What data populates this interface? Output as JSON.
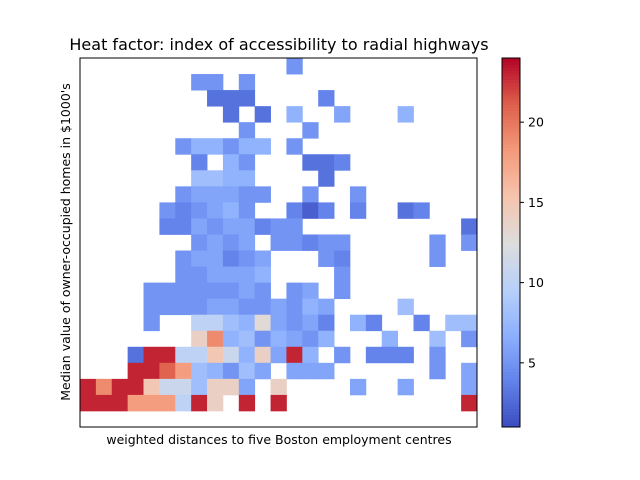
{
  "chart_data": {
    "type": "heatmap",
    "title": "Heat factor: index of accessibility to radial highways",
    "xlabel": "weighted distances to five Boston employment centres",
    "ylabel": "Median value of owner-occupied homes in $1000's",
    "x_ticks_visible": false,
    "y_ticks_visible": false,
    "n_cols": 25,
    "n_rows": 23,
    "colormap": "coolwarm",
    "vmin": 1,
    "vmax": 24,
    "colorbar_ticks": [
      5,
      10,
      15,
      20
    ],
    "colorbar_tick_labels": [
      "5",
      "10",
      "15",
      "20"
    ],
    "cells": [
      {
        "col": 13,
        "row": 0,
        "value": 5
      },
      {
        "col": 7,
        "row": 1,
        "value": 5
      },
      {
        "col": 8,
        "row": 1,
        "value": 5
      },
      {
        "col": 10,
        "row": 1,
        "value": 5
      },
      {
        "col": 8,
        "row": 2,
        "value": 3
      },
      {
        "col": 9,
        "row": 2,
        "value": 3
      },
      {
        "col": 10,
        "row": 2,
        "value": 3
      },
      {
        "col": 15,
        "row": 2,
        "value": 4
      },
      {
        "col": 9,
        "row": 3,
        "value": 3
      },
      {
        "col": 11,
        "row": 3,
        "value": 3
      },
      {
        "col": 13,
        "row": 3,
        "value": 7
      },
      {
        "col": 16,
        "row": 3,
        "value": 6
      },
      {
        "col": 20,
        "row": 3,
        "value": 7
      },
      {
        "col": 10,
        "row": 4,
        "value": 5
      },
      {
        "col": 14,
        "row": 4,
        "value": 5
      },
      {
        "col": 6,
        "row": 5,
        "value": 5
      },
      {
        "col": 7,
        "row": 5,
        "value": 7
      },
      {
        "col": 8,
        "row": 5,
        "value": 7
      },
      {
        "col": 9,
        "row": 5,
        "value": 5
      },
      {
        "col": 10,
        "row": 5,
        "value": 7
      },
      {
        "col": 11,
        "row": 5,
        "value": 7
      },
      {
        "col": 13,
        "row": 5,
        "value": 5
      },
      {
        "col": 7,
        "row": 6,
        "value": 4
      },
      {
        "col": 9,
        "row": 6,
        "value": 7
      },
      {
        "col": 10,
        "row": 6,
        "value": 5
      },
      {
        "col": 14,
        "row": 6,
        "value": 3
      },
      {
        "col": 15,
        "row": 6,
        "value": 3
      },
      {
        "col": 16,
        "row": 6,
        "value": 4
      },
      {
        "col": 7,
        "row": 7,
        "value": 8
      },
      {
        "col": 8,
        "row": 7,
        "value": 8
      },
      {
        "col": 9,
        "row": 7,
        "value": 7
      },
      {
        "col": 10,
        "row": 7,
        "value": 7
      },
      {
        "col": 15,
        "row": 7,
        "value": 3
      },
      {
        "col": 6,
        "row": 8,
        "value": 5
      },
      {
        "col": 7,
        "row": 8,
        "value": 6
      },
      {
        "col": 8,
        "row": 8,
        "value": 6
      },
      {
        "col": 9,
        "row": 8,
        "value": 6
      },
      {
        "col": 10,
        "row": 8,
        "value": 5
      },
      {
        "col": 11,
        "row": 8,
        "value": 5
      },
      {
        "col": 14,
        "row": 8,
        "value": 5
      },
      {
        "col": 17,
        "row": 8,
        "value": 5
      },
      {
        "col": 5,
        "row": 9,
        "value": 5
      },
      {
        "col": 6,
        "row": 9,
        "value": 4
      },
      {
        "col": 7,
        "row": 9,
        "value": 5
      },
      {
        "col": 8,
        "row": 9,
        "value": 6
      },
      {
        "col": 9,
        "row": 9,
        "value": 7
      },
      {
        "col": 10,
        "row": 9,
        "value": 5
      },
      {
        "col": 13,
        "row": 9,
        "value": 4
      },
      {
        "col": 14,
        "row": 9,
        "value": 2
      },
      {
        "col": 15,
        "row": 9,
        "value": 4
      },
      {
        "col": 17,
        "row": 9,
        "value": 4
      },
      {
        "col": 20,
        "row": 9,
        "value": 3
      },
      {
        "col": 21,
        "row": 9,
        "value": 4
      },
      {
        "col": 5,
        "row": 10,
        "value": 4
      },
      {
        "col": 6,
        "row": 10,
        "value": 4
      },
      {
        "col": 7,
        "row": 10,
        "value": 6
      },
      {
        "col": 8,
        "row": 10,
        "value": 5
      },
      {
        "col": 9,
        "row": 10,
        "value": 6
      },
      {
        "col": 10,
        "row": 10,
        "value": 6
      },
      {
        "col": 11,
        "row": 10,
        "value": 4
      },
      {
        "col": 12,
        "row": 10,
        "value": 5
      },
      {
        "col": 13,
        "row": 10,
        "value": 5
      },
      {
        "col": 24,
        "row": 10,
        "value": 3
      },
      {
        "col": 7,
        "row": 11,
        "value": 5
      },
      {
        "col": 8,
        "row": 11,
        "value": 6
      },
      {
        "col": 9,
        "row": 11,
        "value": 5
      },
      {
        "col": 10,
        "row": 11,
        "value": 6
      },
      {
        "col": 12,
        "row": 11,
        "value": 5
      },
      {
        "col": 13,
        "row": 11,
        "value": 5
      },
      {
        "col": 14,
        "row": 11,
        "value": 4
      },
      {
        "col": 15,
        "row": 11,
        "value": 5
      },
      {
        "col": 16,
        "row": 11,
        "value": 5
      },
      {
        "col": 22,
        "row": 11,
        "value": 5
      },
      {
        "col": 24,
        "row": 11,
        "value": 5
      },
      {
        "col": 6,
        "row": 12,
        "value": 5
      },
      {
        "col": 7,
        "row": 12,
        "value": 6
      },
      {
        "col": 8,
        "row": 12,
        "value": 6
      },
      {
        "col": 9,
        "row": 12,
        "value": 4
      },
      {
        "col": 10,
        "row": 12,
        "value": 5
      },
      {
        "col": 11,
        "row": 12,
        "value": 6
      },
      {
        "col": 15,
        "row": 12,
        "value": 5
      },
      {
        "col": 16,
        "row": 12,
        "value": 4
      },
      {
        "col": 22,
        "row": 12,
        "value": 5
      },
      {
        "col": 6,
        "row": 13,
        "value": 5
      },
      {
        "col": 7,
        "row": 13,
        "value": 5
      },
      {
        "col": 8,
        "row": 13,
        "value": 6
      },
      {
        "col": 9,
        "row": 13,
        "value": 6
      },
      {
        "col": 10,
        "row": 13,
        "value": 6
      },
      {
        "col": 11,
        "row": 13,
        "value": 7
      },
      {
        "col": 16,
        "row": 13,
        "value": 5
      },
      {
        "col": 4,
        "row": 14,
        "value": 5
      },
      {
        "col": 5,
        "row": 14,
        "value": 5
      },
      {
        "col": 6,
        "row": 14,
        "value": 5
      },
      {
        "col": 7,
        "row": 14,
        "value": 5
      },
      {
        "col": 8,
        "row": 14,
        "value": 5
      },
      {
        "col": 9,
        "row": 14,
        "value": 5
      },
      {
        "col": 10,
        "row": 14,
        "value": 6
      },
      {
        "col": 11,
        "row": 14,
        "value": 5
      },
      {
        "col": 13,
        "row": 14,
        "value": 5
      },
      {
        "col": 14,
        "row": 14,
        "value": 6
      },
      {
        "col": 16,
        "row": 14,
        "value": 5
      },
      {
        "col": 4,
        "row": 15,
        "value": 5
      },
      {
        "col": 5,
        "row": 15,
        "value": 5
      },
      {
        "col": 6,
        "row": 15,
        "value": 5
      },
      {
        "col": 7,
        "row": 15,
        "value": 5
      },
      {
        "col": 8,
        "row": 15,
        "value": 6
      },
      {
        "col": 9,
        "row": 15,
        "value": 6
      },
      {
        "col": 10,
        "row": 15,
        "value": 5
      },
      {
        "col": 11,
        "row": 15,
        "value": 5
      },
      {
        "col": 12,
        "row": 15,
        "value": 6
      },
      {
        "col": 13,
        "row": 15,
        "value": 5
      },
      {
        "col": 14,
        "row": 15,
        "value": 7
      },
      {
        "col": 15,
        "row": 15,
        "value": 6
      },
      {
        "col": 20,
        "row": 15,
        "value": 8
      },
      {
        "col": 4,
        "row": 16,
        "value": 5
      },
      {
        "col": 7,
        "row": 16,
        "value": 10
      },
      {
        "col": 8,
        "row": 16,
        "value": 10
      },
      {
        "col": 9,
        "row": 16,
        "value": 8
      },
      {
        "col": 10,
        "row": 16,
        "value": 7
      },
      {
        "col": 11,
        "row": 16,
        "value": 13
      },
      {
        "col": 12,
        "row": 16,
        "value": 6
      },
      {
        "col": 13,
        "row": 16,
        "value": 5
      },
      {
        "col": 14,
        "row": 16,
        "value": 6
      },
      {
        "col": 15,
        "row": 16,
        "value": 4
      },
      {
        "col": 17,
        "row": 16,
        "value": 7
      },
      {
        "col": 18,
        "row": 16,
        "value": 4
      },
      {
        "col": 21,
        "row": 16,
        "value": 4
      },
      {
        "col": 23,
        "row": 16,
        "value": 8
      },
      {
        "col": 24,
        "row": 16,
        "value": 8
      },
      {
        "col": 7,
        "row": 17,
        "value": 14
      },
      {
        "col": 8,
        "row": 17,
        "value": 19
      },
      {
        "col": 9,
        "row": 17,
        "value": 7
      },
      {
        "col": 10,
        "row": 17,
        "value": 8
      },
      {
        "col": 11,
        "row": 17,
        "value": 5
      },
      {
        "col": 12,
        "row": 17,
        "value": 7
      },
      {
        "col": 13,
        "row": 17,
        "value": 6
      },
      {
        "col": 14,
        "row": 17,
        "value": 5
      },
      {
        "col": 15,
        "row": 17,
        "value": 7
      },
      {
        "col": 19,
        "row": 17,
        "value": 7
      },
      {
        "col": 22,
        "row": 17,
        "value": 8
      },
      {
        "col": 24,
        "row": 17,
        "value": 5
      },
      {
        "col": 3,
        "row": 18,
        "value": 3
      },
      {
        "col": 4,
        "row": 18,
        "value": 23
      },
      {
        "col": 5,
        "row": 18,
        "value": 23
      },
      {
        "col": 6,
        "row": 18,
        "value": 10
      },
      {
        "col": 7,
        "row": 18,
        "value": 10
      },
      {
        "col": 8,
        "row": 18,
        "value": 15
      },
      {
        "col": 9,
        "row": 18,
        "value": 11
      },
      {
        "col": 10,
        "row": 18,
        "value": 7
      },
      {
        "col": 11,
        "row": 18,
        "value": 14
      },
      {
        "col": 12,
        "row": 18,
        "value": 6
      },
      {
        "col": 13,
        "row": 18,
        "value": 23
      },
      {
        "col": 14,
        "row": 18,
        "value": 7
      },
      {
        "col": 16,
        "row": 18,
        "value": 5
      },
      {
        "col": 18,
        "row": 18,
        "value": 4
      },
      {
        "col": 19,
        "row": 18,
        "value": 4
      },
      {
        "col": 20,
        "row": 18,
        "value": 4
      },
      {
        "col": 22,
        "row": 18,
        "value": 5
      },
      {
        "col": 3,
        "row": 19,
        "value": 23
      },
      {
        "col": 4,
        "row": 19,
        "value": 23
      },
      {
        "col": 5,
        "row": 19,
        "value": 21
      },
      {
        "col": 6,
        "row": 19,
        "value": 18
      },
      {
        "col": 7,
        "row": 19,
        "value": 8
      },
      {
        "col": 8,
        "row": 19,
        "value": 7
      },
      {
        "col": 9,
        "row": 19,
        "value": 5
      },
      {
        "col": 10,
        "row": 19,
        "value": 8
      },
      {
        "col": 11,
        "row": 19,
        "value": 6
      },
      {
        "col": 13,
        "row": 19,
        "value": 6
      },
      {
        "col": 14,
        "row": 19,
        "value": 6
      },
      {
        "col": 15,
        "row": 19,
        "value": 6
      },
      {
        "col": 22,
        "row": 19,
        "value": 5
      },
      {
        "col": 24,
        "row": 19,
        "value": 6
      },
      {
        "col": 0,
        "row": 20,
        "value": 23
      },
      {
        "col": 1,
        "row": 20,
        "value": 19
      },
      {
        "col": 2,
        "row": 20,
        "value": 23
      },
      {
        "col": 3,
        "row": 20,
        "value": 23
      },
      {
        "col": 4,
        "row": 20,
        "value": 15
      },
      {
        "col": 5,
        "row": 20,
        "value": 11
      },
      {
        "col": 6,
        "row": 20,
        "value": 11
      },
      {
        "col": 7,
        "row": 20,
        "value": 8
      },
      {
        "col": 8,
        "row": 20,
        "value": 14
      },
      {
        "col": 9,
        "row": 20,
        "value": 14
      },
      {
        "col": 10,
        "row": 20,
        "value": 6
      },
      {
        "col": 12,
        "row": 20,
        "value": 14
      },
      {
        "col": 17,
        "row": 20,
        "value": 6
      },
      {
        "col": 20,
        "row": 20,
        "value": 6
      },
      {
        "col": 24,
        "row": 20,
        "value": 6
      },
      {
        "col": 0,
        "row": 21,
        "value": 23
      },
      {
        "col": 1,
        "row": 21,
        "value": 23
      },
      {
        "col": 2,
        "row": 21,
        "value": 23
      },
      {
        "col": 3,
        "row": 21,
        "value": 18
      },
      {
        "col": 4,
        "row": 21,
        "value": 18
      },
      {
        "col": 5,
        "row": 21,
        "value": 18
      },
      {
        "col": 6,
        "row": 21,
        "value": 10
      },
      {
        "col": 7,
        "row": 21,
        "value": 23
      },
      {
        "col": 8,
        "row": 21,
        "value": 14
      },
      {
        "col": 10,
        "row": 21,
        "value": 23
      },
      {
        "col": 12,
        "row": 21,
        "value": 23
      },
      {
        "col": 24,
        "row": 21,
        "value": 23
      }
    ]
  }
}
